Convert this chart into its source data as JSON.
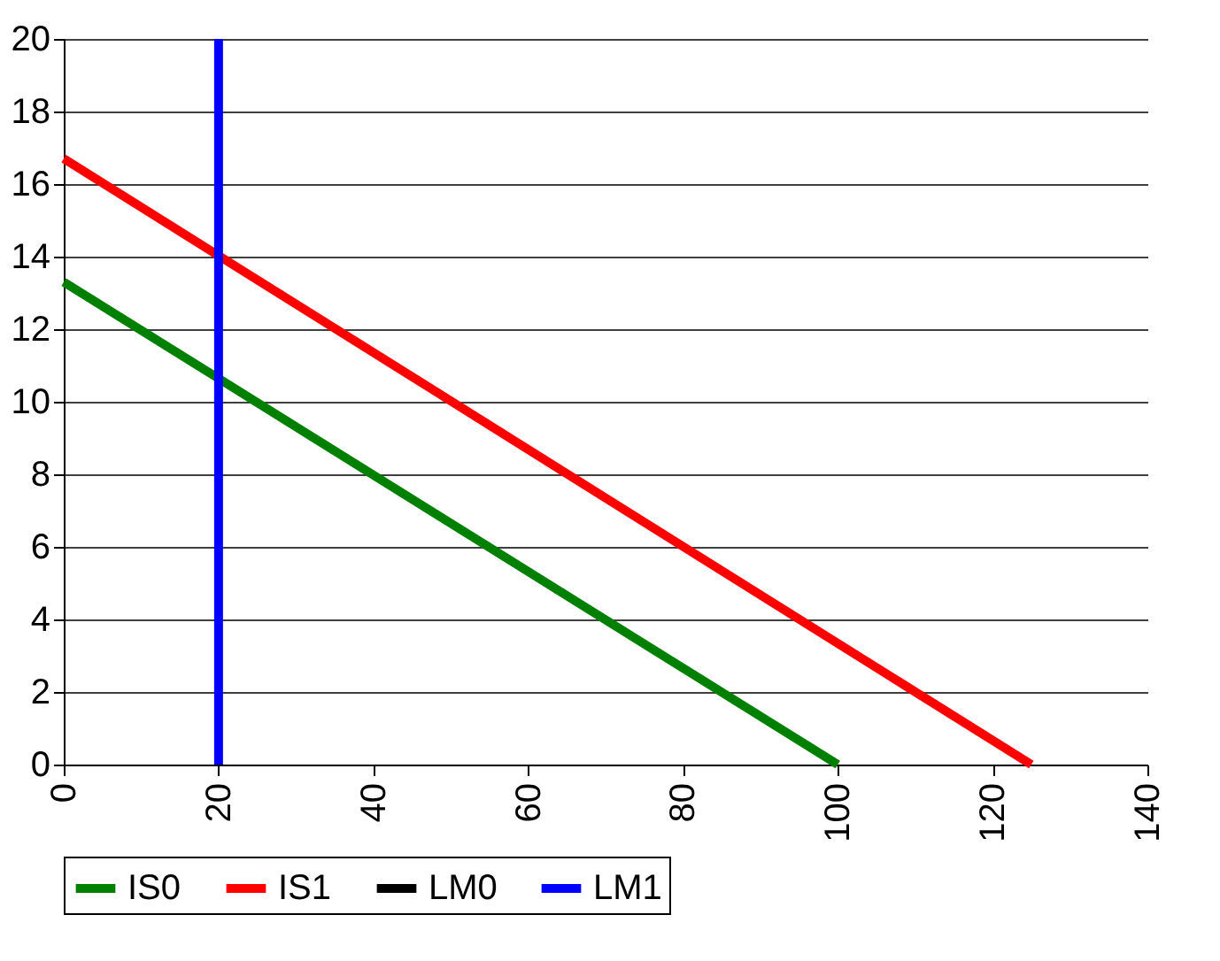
{
  "chart_data": {
    "type": "line",
    "xlim": [
      0,
      140
    ],
    "xticks": [
      0,
      20,
      40,
      60,
      80,
      100,
      120,
      140
    ],
    "ylim": [
      0,
      20
    ],
    "yticks": [
      0,
      2,
      4,
      6,
      8,
      10,
      12,
      14,
      16,
      18,
      20
    ],
    "grid": "y",
    "legend": "bottom",
    "line_style": "solid",
    "marker": "none",
    "series": [
      {
        "name": "IS0",
        "color": "#008000",
        "x": [
          0,
          100
        ],
        "values": [
          13.3,
          0
        ]
      },
      {
        "name": "IS1",
        "color": "#ff0000",
        "x": [
          0,
          125
        ],
        "values": [
          16.7,
          0
        ]
      },
      {
        "name": "LM0",
        "color": "#000000"
      },
      {
        "name": "LM1",
        "color": "#0000ff",
        "x": [
          20,
          20
        ],
        "values": [
          0,
          20
        ]
      }
    ]
  }
}
